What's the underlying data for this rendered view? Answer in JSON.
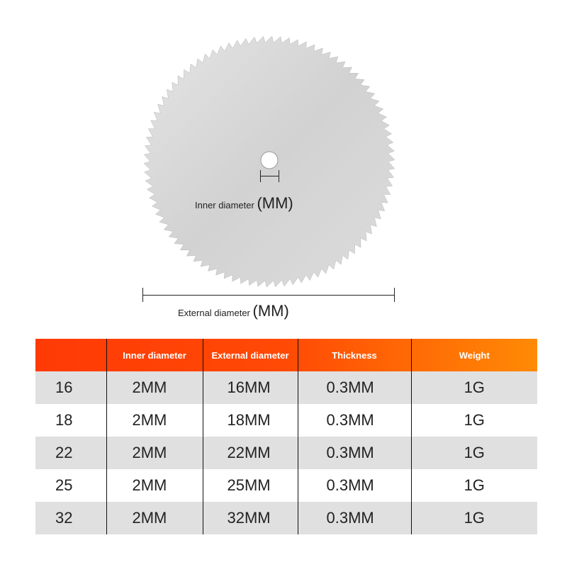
{
  "diagram": {
    "inner_label": "Inner diameter",
    "external_label": "External diameter",
    "unit": "(MM)",
    "blade_color": "#d6d6d6"
  },
  "table": {
    "headers": [
      "",
      "Inner diameter",
      "External diameter",
      "Thickness",
      "Weight"
    ],
    "rows": [
      [
        "16",
        "2MM",
        "16MM",
        "0.3MM",
        "1G"
      ],
      [
        "18",
        "2MM",
        "18MM",
        "0.3MM",
        "1G"
      ],
      [
        "22",
        "2MM",
        "22MM",
        "0.3MM",
        "1G"
      ],
      [
        "25",
        "2MM",
        "25MM",
        "0.3MM",
        "1G"
      ],
      [
        "32",
        "2MM",
        "32MM",
        "0.3MM",
        "1G"
      ]
    ],
    "header_colors": [
      "#ff3a05",
      "#ff8a05"
    ]
  }
}
